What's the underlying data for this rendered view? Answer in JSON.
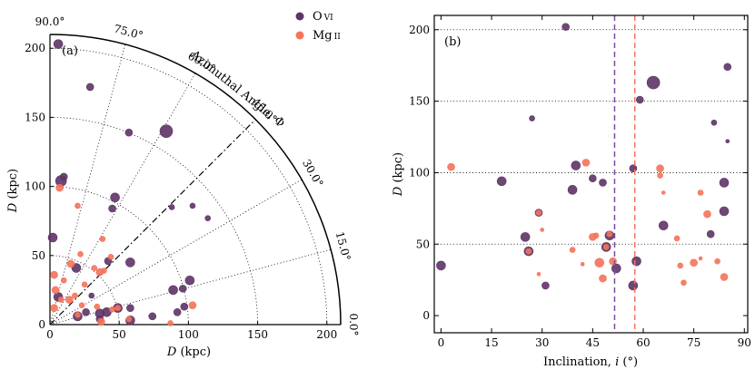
{
  "chart_data": [
    {
      "type": "scatter",
      "subtype": "polar-quadrant",
      "panel_label": "(a)",
      "xlabel_var": "D",
      "xlabel_unit": "(kpc)",
      "ylabel_var": "D",
      "ylabel_unit": "(kpc)",
      "arc_title": "Azimuthal Angle, Φ",
      "rmax": 210,
      "radial_ticks": [
        0,
        50,
        100,
        150,
        200
      ],
      "radial_tick_labels": [
        "0",
        "50",
        "100",
        "150",
        "200"
      ],
      "angle_ticks": [
        0,
        15,
        30,
        45,
        60,
        75,
        90
      ],
      "angle_tick_labels": [
        "0.0°",
        "15.0°",
        "30.0°",
        "45.0°",
        "60.0°",
        "75.0°",
        "90.0°"
      ],
      "grid": true,
      "legend_position": "top-right",
      "series": [
        {
          "name": "O VI",
          "name_main": "O",
          "name_ion": "VI",
          "color": "#5e3466",
          "points": [
            {
              "x": 6,
              "y": 203,
              "s": 5
            },
            {
              "x": 29,
              "y": 172,
              "s": 4
            },
            {
              "x": 57,
              "y": 139,
              "s": 4
            },
            {
              "x": 84,
              "y": 140,
              "s": 7
            },
            {
              "x": 8,
              "y": 104,
              "s": 6
            },
            {
              "x": 10,
              "y": 107,
              "s": 4
            },
            {
              "x": 47,
              "y": 92,
              "s": 5
            },
            {
              "x": 45,
              "y": 84,
              "s": 4
            },
            {
              "x": 88,
              "y": 85,
              "s": 3
            },
            {
              "x": 103,
              "y": 86,
              "s": 3
            },
            {
              "x": 114,
              "y": 77,
              "s": 3
            },
            {
              "x": 2,
              "y": 63,
              "s": 5
            },
            {
              "x": 42,
              "y": 46,
              "s": 4
            },
            {
              "x": 58,
              "y": 45,
              "s": 5
            },
            {
              "x": 19,
              "y": 41,
              "s": 5
            },
            {
              "x": 101,
              "y": 32,
              "s": 5
            },
            {
              "x": 89,
              "y": 25,
              "s": 5
            },
            {
              "x": 96,
              "y": 26,
              "s": 4
            },
            {
              "x": 6,
              "y": 20,
              "s": 5
            },
            {
              "x": 30,
              "y": 21,
              "s": 3
            },
            {
              "x": 49,
              "y": 12,
              "s": 5
            },
            {
              "x": 58,
              "y": 12,
              "s": 4
            },
            {
              "x": 41,
              "y": 9,
              "s": 5
            },
            {
              "x": 36,
              "y": 8,
              "s": 5
            },
            {
              "x": 26,
              "y": 9,
              "s": 4
            },
            {
              "x": 20,
              "y": 6,
              "s": 5
            },
            {
              "x": 74,
              "y": 6,
              "s": 4
            },
            {
              "x": 97,
              "y": 13,
              "s": 4
            },
            {
              "x": 92,
              "y": 9,
              "s": 4
            },
            {
              "x": 58,
              "y": 3,
              "s": 5
            },
            {
              "x": 36,
              "y": 4,
              "s": 4
            }
          ]
        },
        {
          "name": "Mg II",
          "name_main": "Mg",
          "name_ion": "II",
          "color": "#f4735a",
          "points": [
            {
              "x": 7,
              "y": 99,
              "s": 4
            },
            {
              "x": 20,
              "y": 86,
              "s": 3
            },
            {
              "x": 38,
              "y": 62,
              "s": 3
            },
            {
              "x": 15,
              "y": 44,
              "s": 4
            },
            {
              "x": 22,
              "y": 51,
              "s": 3
            },
            {
              "x": 32,
              "y": 41,
              "s": 3
            },
            {
              "x": 3,
              "y": 36,
              "s": 4
            },
            {
              "x": 10,
              "y": 32,
              "s": 3
            },
            {
              "x": 25,
              "y": 29,
              "s": 3
            },
            {
              "x": 39,
              "y": 39,
              "s": 3
            },
            {
              "x": 4,
              "y": 25,
              "s": 4
            },
            {
              "x": 14,
              "y": 18,
              "s": 4
            },
            {
              "x": 18,
              "y": 21,
              "s": 3
            },
            {
              "x": 23,
              "y": 14,
              "s": 3
            },
            {
              "x": 8,
              "y": 18,
              "s": 3
            },
            {
              "x": 3,
              "y": 12,
              "s": 4
            },
            {
              "x": 45,
              "y": 11,
              "s": 3
            },
            {
              "x": 103,
              "y": 14,
              "s": 4
            },
            {
              "x": 20,
              "y": 7,
              "s": 3
            },
            {
              "x": 34,
              "y": 13,
              "s": 3
            },
            {
              "x": 37,
              "y": 2,
              "s": 4
            },
            {
              "x": 57,
              "y": 4,
              "s": 3
            },
            {
              "x": 87,
              "y": 1,
              "s": 3
            },
            {
              "x": 44,
              "y": 49,
              "s": 3
            },
            {
              "x": 36,
              "y": 38,
              "s": 4
            },
            {
              "x": 49,
              "y": 12,
              "s": 3
            }
          ]
        }
      ]
    },
    {
      "type": "scatter",
      "panel_label": "(b)",
      "xlabel_text": "Inclination,",
      "xlabel_var": "i",
      "xlabel_unit": "(°)",
      "ylabel_var": "D",
      "ylabel_unit": "(kpc)",
      "xlim": [
        -2,
        91
      ],
      "ylim": [
        -12,
        210
      ],
      "xticks": [
        0,
        15,
        30,
        45,
        60,
        75,
        90
      ],
      "yticks": [
        0,
        50,
        100,
        150,
        200
      ],
      "grid_y": [
        50,
        100,
        150,
        200
      ],
      "vlines": [
        {
          "x": 51.5,
          "color": "#7b4aa0"
        },
        {
          "x": 57.5,
          "color": "#f4735a"
        }
      ],
      "series": [
        {
          "name": "O VI",
          "color": "#5e3466",
          "points": [
            {
              "x": 37,
              "y": 202,
              "s": 4
            },
            {
              "x": 85,
              "y": 174,
              "s": 4
            },
            {
              "x": 63,
              "y": 163,
              "s": 7
            },
            {
              "x": 59,
              "y": 151,
              "s": 4
            },
            {
              "x": 27,
              "y": 138,
              "s": 3
            },
            {
              "x": 81,
              "y": 135,
              "s": 3
            },
            {
              "x": 85,
              "y": 122,
              "s": 2
            },
            {
              "x": 40,
              "y": 105,
              "s": 5
            },
            {
              "x": 57,
              "y": 103,
              "s": 4
            },
            {
              "x": 18,
              "y": 94,
              "s": 5
            },
            {
              "x": 45,
              "y": 96,
              "s": 4
            },
            {
              "x": 48,
              "y": 93,
              "s": 4
            },
            {
              "x": 84,
              "y": 93,
              "s": 5
            },
            {
              "x": 39,
              "y": 88,
              "s": 5
            },
            {
              "x": 29,
              "y": 72,
              "s": 4
            },
            {
              "x": 84,
              "y": 73,
              "s": 5
            },
            {
              "x": 66,
              "y": 63,
              "s": 5
            },
            {
              "x": 80,
              "y": 57,
              "s": 4
            },
            {
              "x": 25,
              "y": 55,
              "s": 5
            },
            {
              "x": 50,
              "y": 56,
              "s": 5
            },
            {
              "x": 49,
              "y": 48,
              "s": 5
            },
            {
              "x": 26,
              "y": 45,
              "s": 5
            },
            {
              "x": 0,
              "y": 35,
              "s": 5
            },
            {
              "x": 58,
              "y": 38,
              "s": 5
            },
            {
              "x": 52,
              "y": 33,
              "s": 5
            },
            {
              "x": 31,
              "y": 21,
              "s": 4
            },
            {
              "x": 57,
              "y": 21,
              "s": 5
            }
          ]
        },
        {
          "name": "Mg II",
          "color": "#f4735a",
          "points": [
            {
              "x": 3,
              "y": 104,
              "s": 4
            },
            {
              "x": 43,
              "y": 107,
              "s": 4
            },
            {
              "x": 65,
              "y": 103,
              "s": 4
            },
            {
              "x": 65,
              "y": 98,
              "s": 3
            },
            {
              "x": 77,
              "y": 86,
              "s": 3
            },
            {
              "x": 66,
              "y": 86,
              "s": 2
            },
            {
              "x": 29,
              "y": 72,
              "s": 3
            },
            {
              "x": 79,
              "y": 71,
              "s": 4
            },
            {
              "x": 30,
              "y": 60,
              "s": 2
            },
            {
              "x": 70,
              "y": 54,
              "s": 3
            },
            {
              "x": 45,
              "y": 55,
              "s": 4
            },
            {
              "x": 46,
              "y": 56,
              "s": 3
            },
            {
              "x": 49,
              "y": 48,
              "s": 3
            },
            {
              "x": 26,
              "y": 45,
              "s": 3
            },
            {
              "x": 39,
              "y": 46,
              "s": 3
            },
            {
              "x": 50,
              "y": 57,
              "s": 3
            },
            {
              "x": 42,
              "y": 36,
              "s": 2
            },
            {
              "x": 47,
              "y": 37,
              "s": 5
            },
            {
              "x": 51,
              "y": 38,
              "s": 4
            },
            {
              "x": 77,
              "y": 40,
              "s": 2
            },
            {
              "x": 75,
              "y": 37,
              "s": 4
            },
            {
              "x": 71,
              "y": 35,
              "s": 3
            },
            {
              "x": 82,
              "y": 38,
              "s": 3
            },
            {
              "x": 29,
              "y": 29,
              "s": 2
            },
            {
              "x": 48,
              "y": 26,
              "s": 4
            },
            {
              "x": 84,
              "y": 27,
              "s": 4
            },
            {
              "x": 72,
              "y": 23,
              "s": 3
            }
          ]
        }
      ]
    }
  ]
}
